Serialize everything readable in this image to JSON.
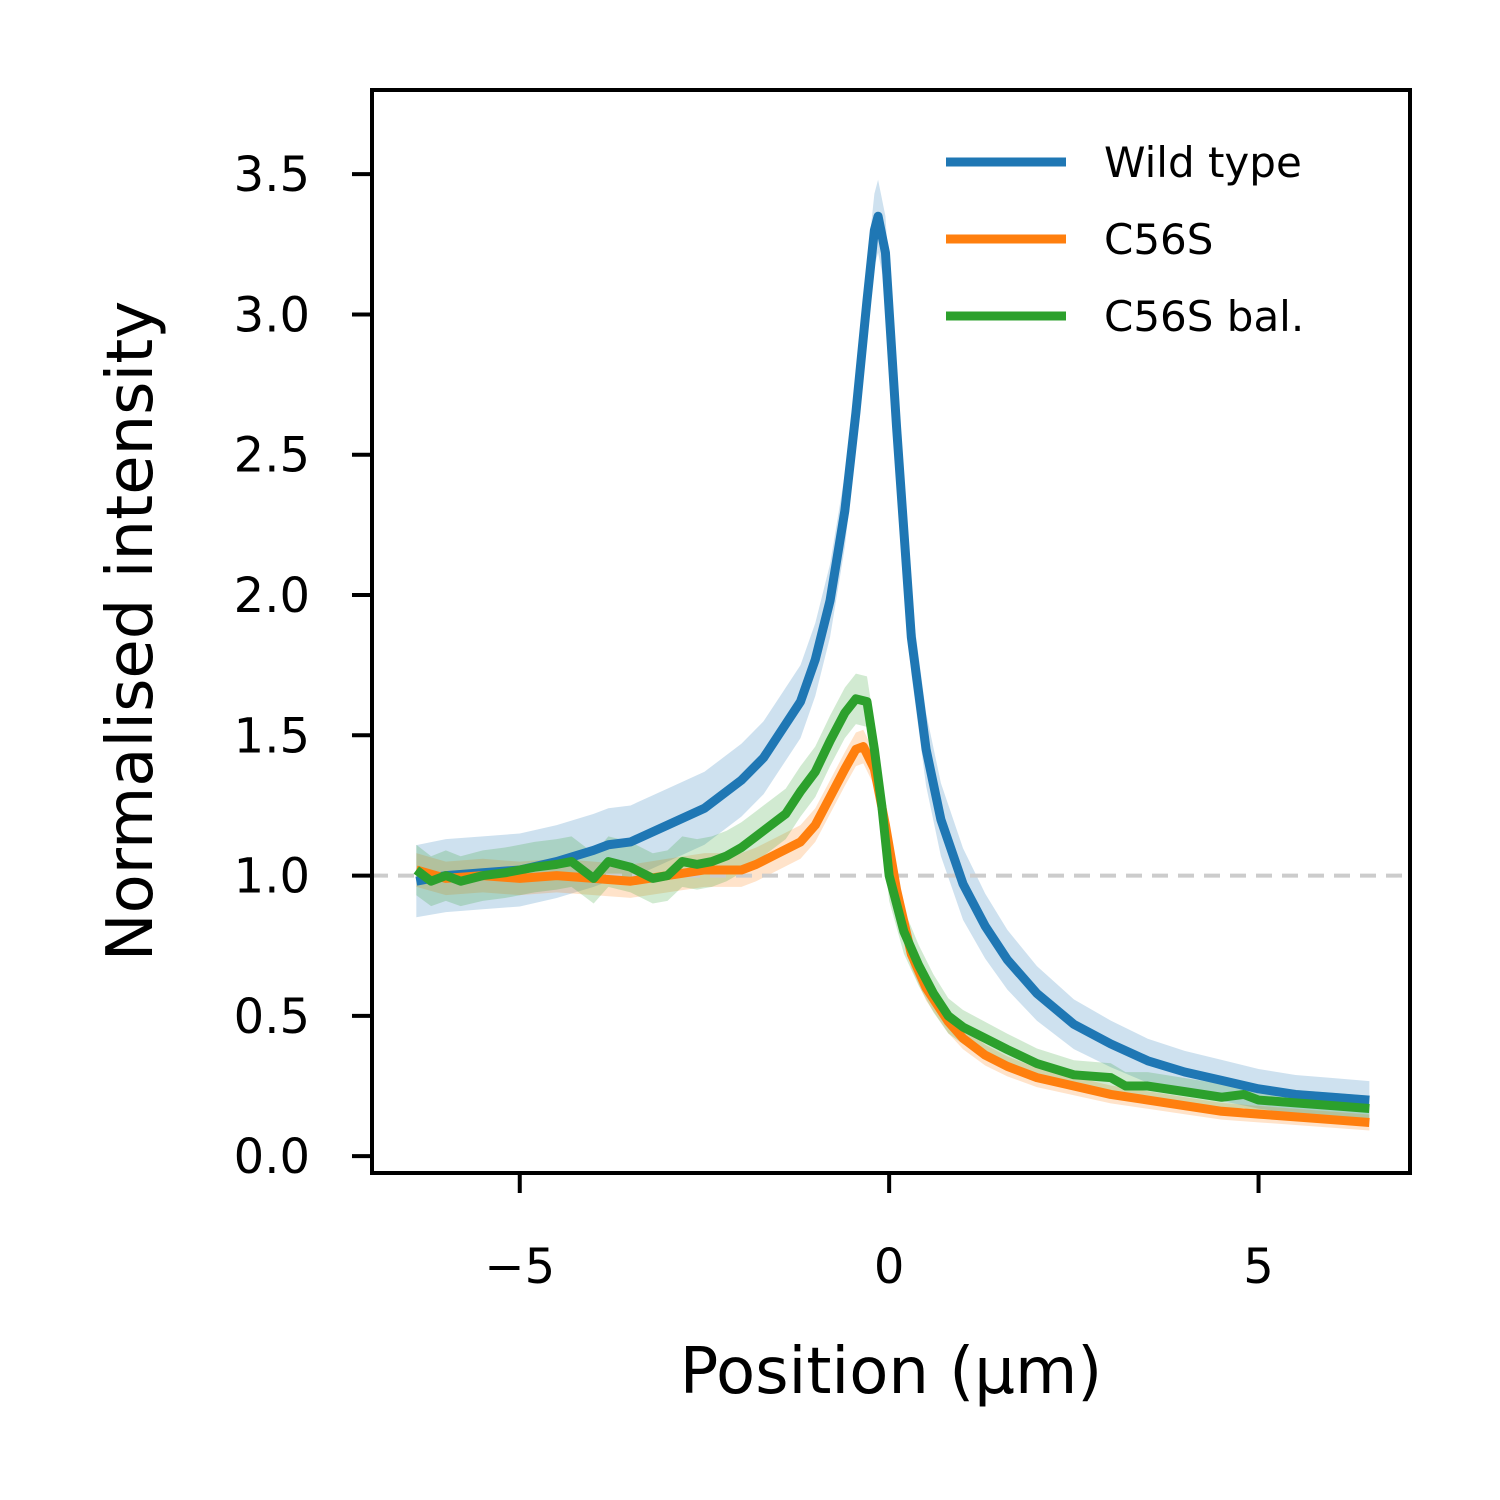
{
  "chart_data": {
    "type": "line",
    "title": "",
    "xlabel": "Position (µm)",
    "ylabel": "Normalised intensity",
    "xlim": [
      -7.0,
      7.05
    ],
    "ylim": [
      -0.06,
      3.8
    ],
    "xticks": [
      {
        "value": -5,
        "label": "−5"
      },
      {
        "value": 0,
        "label": "0"
      },
      {
        "value": 5,
        "label": "5"
      }
    ],
    "yticks": [
      {
        "value": 0.0,
        "label": "0.0"
      },
      {
        "value": 0.5,
        "label": "0.5"
      },
      {
        "value": 1.0,
        "label": "1.0"
      },
      {
        "value": 1.5,
        "label": "1.5"
      },
      {
        "value": 2.0,
        "label": "2.0"
      },
      {
        "value": 2.5,
        "label": "2.5"
      },
      {
        "value": 3.0,
        "label": "3.0"
      },
      {
        "value": 3.5,
        "label": "3.5"
      }
    ],
    "grid": false,
    "legend_position": "upper right",
    "reference_line": {
      "y": 1.0,
      "style": "dashed",
      "color": "#cccccc"
    },
    "series": [
      {
        "name": "Wild type",
        "color": "#1f77b4",
        "band": 0.13,
        "x": [
          -6.4,
          -6.0,
          -5.5,
          -5.0,
          -4.5,
          -4.0,
          -3.8,
          -3.5,
          -3.0,
          -2.5,
          -2.0,
          -1.7,
          -1.5,
          -1.2,
          -1.0,
          -0.8,
          -0.6,
          -0.45,
          -0.3,
          -0.2,
          -0.15,
          -0.05,
          0.1,
          0.3,
          0.5,
          0.7,
          1.0,
          1.3,
          1.6,
          2.0,
          2.5,
          3.0,
          3.5,
          4.0,
          4.5,
          5.0,
          5.5,
          6.0,
          6.5
        ],
        "y": [
          0.98,
          1.0,
          1.01,
          1.02,
          1.05,
          1.09,
          1.11,
          1.12,
          1.18,
          1.24,
          1.34,
          1.42,
          1.5,
          1.62,
          1.77,
          1.98,
          2.3,
          2.65,
          3.05,
          3.3,
          3.35,
          3.22,
          2.6,
          1.85,
          1.45,
          1.2,
          0.97,
          0.82,
          0.7,
          0.58,
          0.47,
          0.4,
          0.34,
          0.3,
          0.27,
          0.24,
          0.22,
          0.21,
          0.2
        ]
      },
      {
        "name": "C56S",
        "color": "#ff7f0e",
        "band": 0.06,
        "x": [
          -6.4,
          -6.0,
          -5.5,
          -5.0,
          -4.5,
          -4.0,
          -3.5,
          -3.0,
          -2.5,
          -2.0,
          -1.8,
          -1.5,
          -1.2,
          -1.0,
          -0.8,
          -0.6,
          -0.45,
          -0.35,
          -0.2,
          -0.05,
          0.1,
          0.3,
          0.5,
          0.8,
          1.0,
          1.3,
          1.6,
          2.0,
          2.5,
          3.0,
          3.5,
          4.0,
          4.5,
          5.0,
          5.5,
          6.0,
          6.5
        ],
        "y": [
          1.02,
          0.99,
          1.0,
          0.99,
          1.0,
          0.99,
          0.98,
          1.0,
          1.02,
          1.02,
          1.04,
          1.08,
          1.12,
          1.18,
          1.28,
          1.38,
          1.45,
          1.46,
          1.38,
          1.18,
          0.95,
          0.72,
          0.6,
          0.48,
          0.42,
          0.36,
          0.32,
          0.28,
          0.25,
          0.22,
          0.2,
          0.18,
          0.16,
          0.15,
          0.14,
          0.13,
          0.12
        ]
      },
      {
        "name": "C56S bal.",
        "color": "#2ca02c",
        "band": 0.09,
        "x": [
          -6.4,
          -6.2,
          -6.0,
          -5.8,
          -5.5,
          -5.2,
          -5.0,
          -4.8,
          -4.5,
          -4.3,
          -4.0,
          -3.8,
          -3.5,
          -3.2,
          -3.0,
          -2.8,
          -2.6,
          -2.4,
          -2.2,
          -2.0,
          -1.8,
          -1.6,
          -1.4,
          -1.2,
          -1.0,
          -0.8,
          -0.6,
          -0.45,
          -0.3,
          -0.2,
          -0.1,
          0.0,
          0.2,
          0.4,
          0.6,
          0.8,
          1.0,
          1.3,
          1.6,
          2.0,
          2.5,
          3.0,
          3.2,
          3.5,
          4.0,
          4.5,
          4.8,
          5.0,
          5.5,
          6.0,
          6.5
        ],
        "y": [
          1.02,
          0.98,
          1.0,
          0.98,
          1.0,
          1.01,
          1.02,
          1.03,
          1.04,
          1.05,
          0.99,
          1.05,
          1.03,
          0.99,
          1.0,
          1.05,
          1.04,
          1.05,
          1.07,
          1.1,
          1.14,
          1.18,
          1.22,
          1.3,
          1.37,
          1.48,
          1.58,
          1.63,
          1.62,
          1.45,
          1.25,
          1.0,
          0.8,
          0.68,
          0.58,
          0.5,
          0.46,
          0.42,
          0.38,
          0.33,
          0.29,
          0.28,
          0.25,
          0.25,
          0.23,
          0.21,
          0.22,
          0.2,
          0.19,
          0.18,
          0.17
        ]
      }
    ]
  }
}
